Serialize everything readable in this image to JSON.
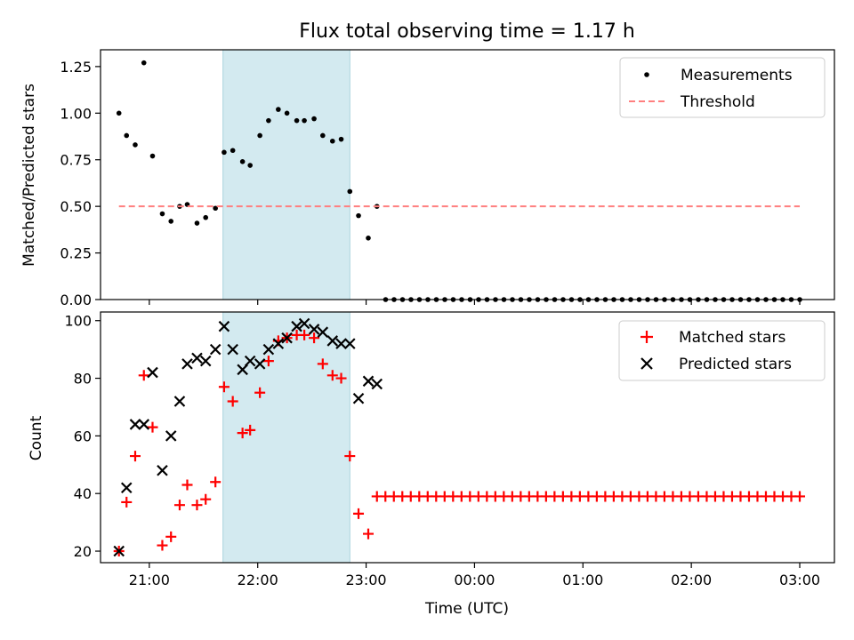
{
  "chart_data": {
    "title": "Flux total observing time = 1.17 h",
    "xlabel": "Time (UTC)",
    "x_ticks": [
      "21:00",
      "22:00",
      "23:00",
      "00:00",
      "01:00",
      "02:00",
      "03:00"
    ],
    "x_range_hours": [
      20.55,
      27.32
    ],
    "shaded_span_hours": [
      21.68,
      22.85
    ],
    "shade_color": "#d3eaf0",
    "panels": [
      {
        "type": "scatter",
        "ylabel": "Matched/Predicted stars",
        "ylim": [
          0,
          1.34
        ],
        "y_ticks": [
          "0.00",
          "0.25",
          "0.50",
          "0.75",
          "1.00",
          "1.25"
        ],
        "legend_position": "top-right",
        "series": [
          {
            "name": "Measurements",
            "marker": "dot",
            "color": "#000000",
            "x": [
              20.72,
              20.79,
              20.87,
              20.95,
              21.03,
              21.12,
              21.2,
              21.28,
              21.35,
              21.44,
              21.52,
              21.61,
              21.69,
              21.77,
              21.86,
              21.93,
              22.02,
              22.1,
              22.19,
              22.27,
              22.36,
              22.43,
              22.52,
              22.6,
              22.69,
              22.77,
              22.85,
              22.93,
              23.02,
              23.1
            ],
            "y": [
              1.0,
              0.88,
              0.83,
              1.27,
              0.77,
              0.46,
              0.42,
              0.5,
              0.51,
              0.41,
              0.44,
              0.49,
              0.79,
              0.8,
              0.74,
              0.72,
              0.88,
              0.96,
              1.02,
              1.0,
              0.96,
              0.96,
              0.97,
              0.88,
              0.85,
              0.86,
              0.58,
              0.45,
              0.33,
              0.5
            ],
            "x_zero_start": 23.18,
            "x_zero_end": 27.0,
            "x_zero_count": 50,
            "y_zero_value": 0
          },
          {
            "name": "Threshold",
            "marker": "dashed-line",
            "color": "#ff7f7f",
            "x": [
              20.72,
              27.0
            ],
            "y": [
              0.5,
              0.5
            ]
          }
        ]
      },
      {
        "type": "scatter",
        "ylabel": "Count",
        "ylim": [
          16,
          103
        ],
        "y_ticks": [
          "20",
          "40",
          "60",
          "80",
          "100"
        ],
        "legend_position": "top-right",
        "series": [
          {
            "name": "Matched stars",
            "marker": "plus",
            "color": "#ff0000",
            "x": [
              20.72,
              20.79,
              20.87,
              20.95,
              21.03,
              21.12,
              21.2,
              21.28,
              21.35,
              21.44,
              21.52,
              21.61,
              21.69,
              21.77,
              21.86,
              21.93,
              22.02,
              22.1,
              22.19,
              22.27,
              22.36,
              22.43,
              22.52,
              22.6,
              22.69,
              22.77,
              22.85,
              22.93,
              23.02
            ],
            "y": [
              20,
              37,
              53,
              81,
              63,
              22,
              25,
              36,
              43,
              36,
              38,
              44,
              77,
              72,
              61,
              62,
              75,
              86,
              93,
              94,
              95,
              95,
              94,
              85,
              81,
              80,
              53,
              33,
              26
            ],
            "x_const_start": 23.1,
            "x_const_end": 27.0,
            "x_const_count": 51,
            "y_const_value": 39
          },
          {
            "name": "Predicted stars",
            "marker": "x",
            "color": "#000000",
            "x": [
              20.72,
              20.79,
              20.87,
              20.95,
              21.03,
              21.12,
              21.2,
              21.28,
              21.35,
              21.44,
              21.52,
              21.61,
              21.69,
              21.77,
              21.86,
              21.93,
              22.02,
              22.1,
              22.19,
              22.27,
              22.36,
              22.43,
              22.52,
              22.6,
              22.69,
              22.77,
              22.85,
              22.93,
              23.02,
              23.1
            ],
            "y": [
              20,
              42,
              64,
              64,
              82,
              48,
              60,
              72,
              85,
              87,
              86,
              90,
              98,
              90,
              83,
              86,
              85,
              90,
              92,
              94,
              98,
              99,
              97,
              96,
              93,
              92,
              92,
              73,
              79,
              78
            ]
          }
        ]
      }
    ]
  }
}
